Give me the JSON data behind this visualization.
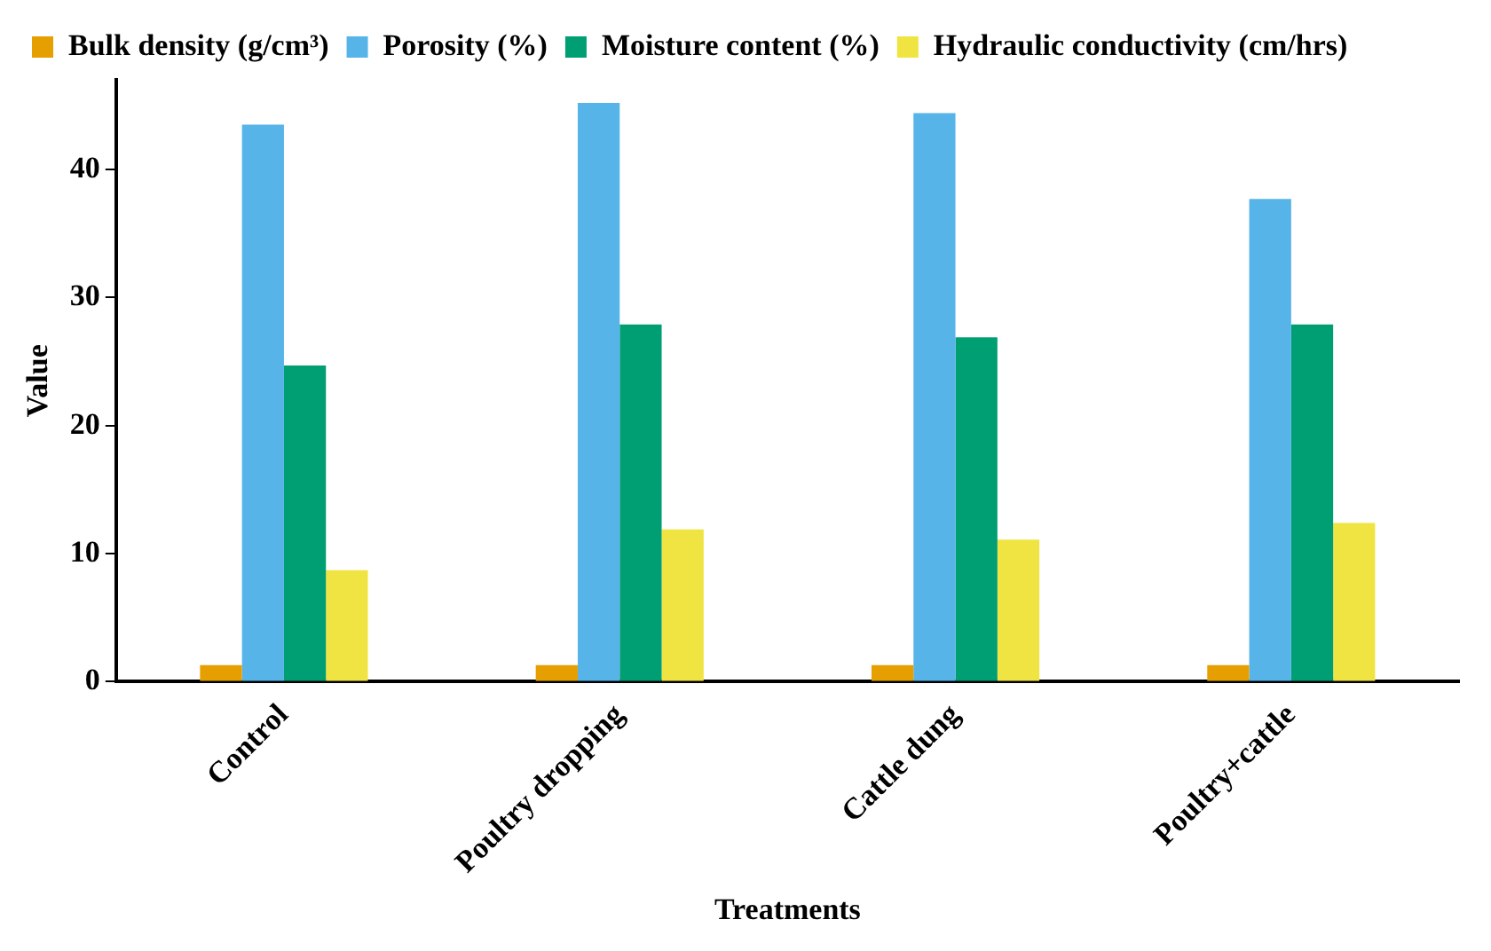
{
  "chart_data": {
    "type": "bar",
    "xlabel": "Treatments",
    "ylabel": "Value",
    "categories": [
      "Control",
      "Poultry dropping",
      "Cattle dung",
      "Poultry+cattle"
    ],
    "series": [
      {
        "name": "Bulk density (g/cm³)",
        "color": "#e69f00",
        "values": [
          1.3,
          1.3,
          1.3,
          1.3
        ]
      },
      {
        "name": "Porosity (%)",
        "color": "#56b4e9",
        "values": [
          43.5,
          45.2,
          44.4,
          37.7
        ]
      },
      {
        "name": "Moisture content (%)",
        "color": "#009e73",
        "values": [
          24.7,
          27.9,
          26.9,
          27.9
        ]
      },
      {
        "name": "Hydraulic conductivity (cm/hrs)",
        "color": "#f0e442",
        "values": [
          8.7,
          11.9,
          11.1,
          12.4
        ]
      }
    ],
    "ylim": [
      0,
      47
    ],
    "yticks": [
      0,
      10,
      20,
      30,
      40
    ],
    "grid": false,
    "legend": "top"
  }
}
